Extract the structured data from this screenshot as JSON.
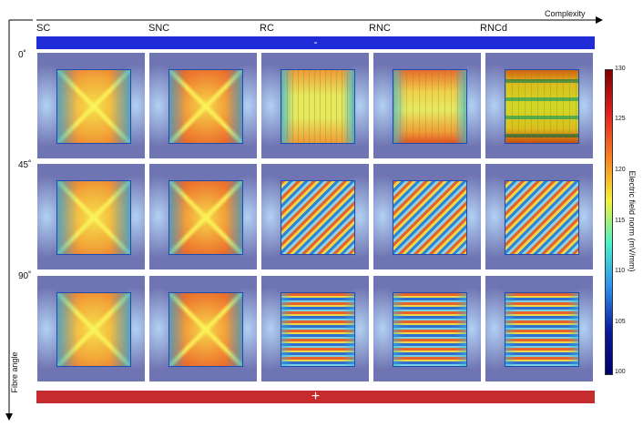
{
  "axes": {
    "complexity_label": "Complexity",
    "fibre_angle_label": "Fibre angle"
  },
  "columns": [
    "SC",
    "SNC",
    "RC",
    "RNC",
    "RNCd"
  ],
  "rows": [
    "0˚",
    "45˚",
    "90˚"
  ],
  "bars": {
    "top_sign": "-",
    "bottom_sign": "+"
  },
  "colorbar": {
    "label": "Electric field norm (mV/mm)",
    "ticks": [
      "130",
      "125",
      "120",
      "115",
      "110",
      "105",
      "100"
    ],
    "colors": [
      "#800000",
      "#e02020",
      "#f78020",
      "#f4f03a",
      "#48f0c8",
      "#2b8ff0",
      "#0a1a9a",
      "#000070"
    ]
  }
}
